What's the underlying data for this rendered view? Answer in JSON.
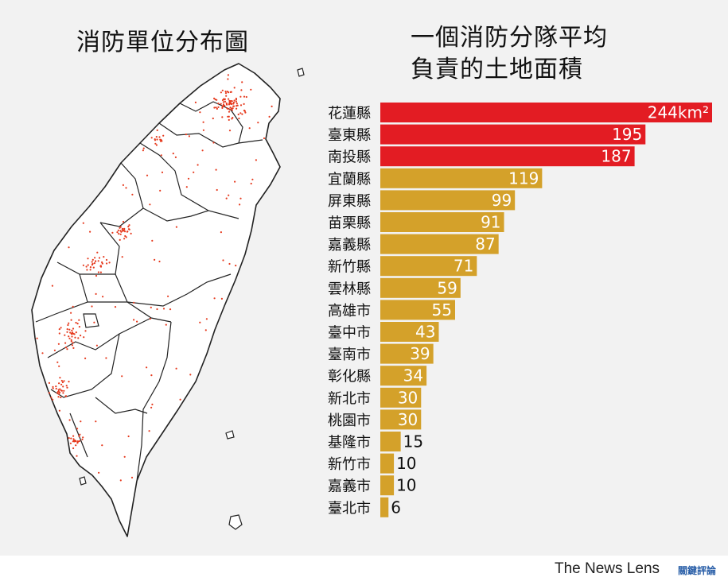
{
  "map": {
    "title": "消防單位分布圖"
  },
  "chart_data": {
    "type": "bar",
    "orientation": "horizontal",
    "title_lines": [
      "一個消防分隊平均",
      "負責的土地面積"
    ],
    "unit": "km²",
    "categories": [
      "花蓮縣",
      "臺東縣",
      "南投縣",
      "宜蘭縣",
      "屏東縣",
      "苗栗縣",
      "嘉義縣",
      "新竹縣",
      "雲林縣",
      "高雄市",
      "臺中市",
      "臺南市",
      "彰化縣",
      "新北市",
      "桃園市",
      "基隆市",
      "新竹市",
      "嘉義市",
      "臺北市"
    ],
    "values": [
      244,
      195,
      187,
      119,
      99,
      91,
      87,
      71,
      59,
      55,
      43,
      39,
      34,
      30,
      30,
      15,
      10,
      10,
      6
    ],
    "value_labels": [
      "244km²",
      "195",
      "187",
      "119",
      "99",
      "91",
      "87",
      "71",
      "59",
      "55",
      "43",
      "39",
      "34",
      "30",
      "30",
      "15",
      "10",
      "10",
      "6"
    ],
    "highlight_color": "#e31c23",
    "base_color": "#d4a12a",
    "highlight_count": 3
  },
  "footer": {
    "brand": "The News Lens",
    "brand_cn": "關鍵評論"
  }
}
